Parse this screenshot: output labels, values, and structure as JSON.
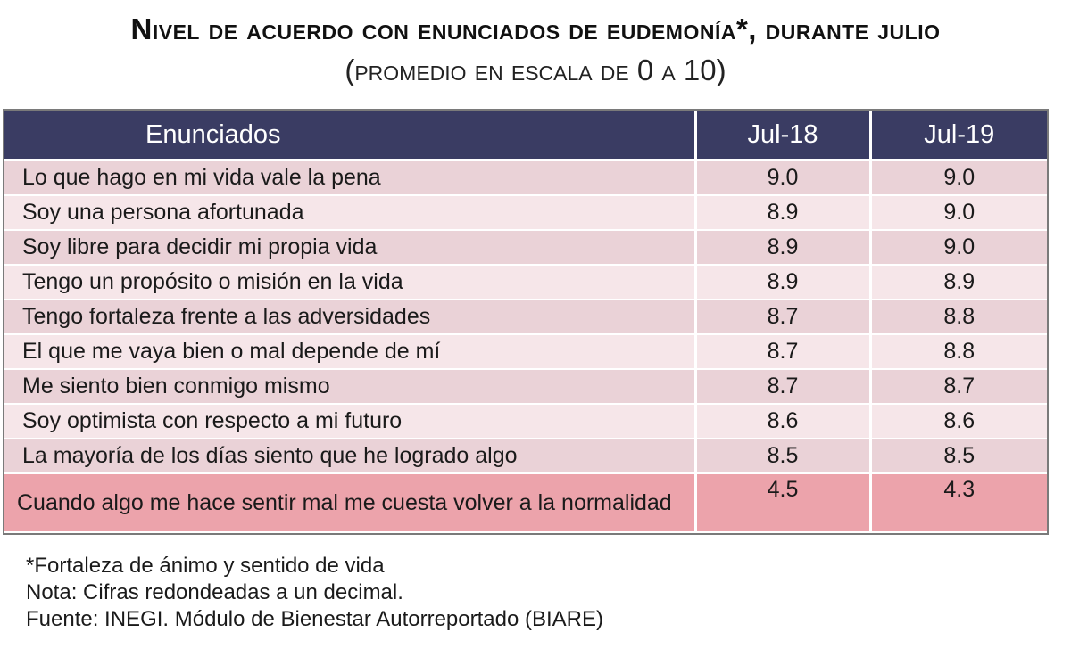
{
  "title": "Nivel de acuerdo con enunciados de eudemonía*, durante julio",
  "subtitle": "(promedio en escala de 0 a 10)",
  "chart_data": {
    "type": "table",
    "columns": [
      "Enunciados",
      "Jul-18",
      "Jul-19"
    ],
    "rows": [
      {
        "statement": "Lo que hago en mi vida vale la pena",
        "jul18": "9.0",
        "jul19": "9.0"
      },
      {
        "statement": "Soy una persona afortunada",
        "jul18": "8.9",
        "jul19": "9.0"
      },
      {
        "statement": "Soy libre para decidir mi propia vida",
        "jul18": "8.9",
        "jul19": "9.0"
      },
      {
        "statement": "Tengo un propósito o misión en la vida",
        "jul18": "8.9",
        "jul19": "8.9"
      },
      {
        "statement": "Tengo fortaleza frente a las adversidades",
        "jul18": "8.7",
        "jul19": "8.8"
      },
      {
        "statement": "El que me vaya bien o mal depende de mí",
        "jul18": "8.7",
        "jul19": "8.8"
      },
      {
        "statement": "Me siento bien conmigo mismo",
        "jul18": "8.7",
        "jul19": "8.7"
      },
      {
        "statement": "Soy optimista con respecto a mi futuro",
        "jul18": "8.6",
        "jul19": "8.6"
      },
      {
        "statement": "La mayoría de los días siento que he logrado algo",
        "jul18": "8.5",
        "jul19": "8.5"
      },
      {
        "statement": "Cuando algo me hace sentir mal me cuesta volver a la normalidad",
        "jul18": "4.5",
        "jul19": "4.3",
        "highlight": true
      }
    ],
    "colors": {
      "header_bg": "#3a3c63",
      "row_odd": "#ead2d7",
      "row_even": "#f6e6e9",
      "row_highlight": "#eca3ab"
    }
  },
  "notes": {
    "footnote": "*Fortaleza de ánimo y sentido de vida",
    "nota": "Nota:  Cifras redondeadas a un decimal.",
    "fuente": "Fuente: INEGI. Módulo de Bienestar Autorreportado (BIARE)"
  }
}
